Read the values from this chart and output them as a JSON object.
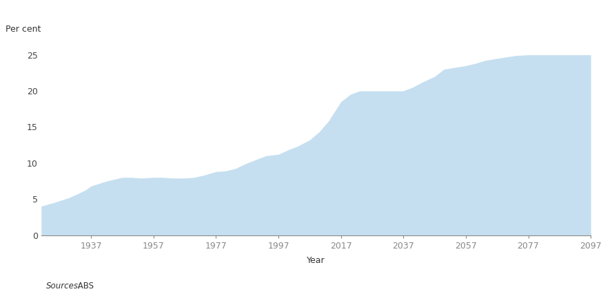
{
  "ylabel": "Per cent",
  "xlabel": "Year",
  "fill_color": "#c5dff0",
  "background_color": "#ffffff",
  "ylim": [
    0,
    27
  ],
  "yticks": [
    0,
    5,
    10,
    15,
    20,
    25
  ],
  "xticks": [
    1937,
    1957,
    1977,
    1997,
    2017,
    2037,
    2057,
    2077,
    2097
  ],
  "xlim": [
    1921,
    2097
  ],
  "source_italic": "Sources:",
  "source_normal": " ABS",
  "years": [
    1921,
    1925,
    1930,
    1935,
    1937,
    1942,
    1947,
    1950,
    1953,
    1957,
    1960,
    1963,
    1967,
    1970,
    1973,
    1977,
    1980,
    1983,
    1987,
    1990,
    1993,
    1997,
    2000,
    2003,
    2007,
    2010,
    2013,
    2017,
    2020,
    2023,
    2027,
    2030,
    2033,
    2037,
    2040,
    2043,
    2047,
    2050,
    2057,
    2060,
    2063,
    2067,
    2070,
    2073,
    2077,
    2080,
    2097
  ],
  "values": [
    4.0,
    4.5,
    5.2,
    6.2,
    6.8,
    7.5,
    8.0,
    8.0,
    7.9,
    8.0,
    8.0,
    7.9,
    7.9,
    8.0,
    8.3,
    8.8,
    8.9,
    9.2,
    10.0,
    10.5,
    11.0,
    11.2,
    11.8,
    12.3,
    13.2,
    14.3,
    15.8,
    18.5,
    19.5,
    20.0,
    20.0,
    20.0,
    20.0,
    20.0,
    20.5,
    21.2,
    22.0,
    23.0,
    23.5,
    23.8,
    24.2,
    24.5,
    24.7,
    24.9,
    25.0,
    25.0,
    25.0
  ]
}
